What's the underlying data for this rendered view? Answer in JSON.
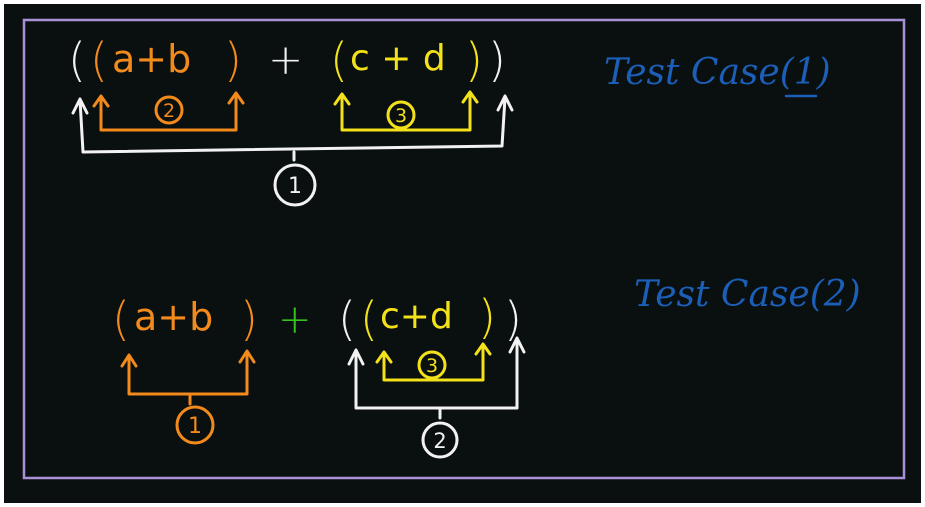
{
  "colors": {
    "background": "#0a0f0f",
    "frame": "#a891d8",
    "white": "#f2f2f2",
    "orange": "#f28a1c",
    "yellow": "#f3e21a",
    "green": "#35c21f",
    "blue": "#1c5fb8"
  },
  "case1": {
    "label": "Test Case(1)",
    "open_outer": "(",
    "open_inner_left": "(",
    "left_expr": "a+b",
    "close_inner_left": ")",
    "operator": "+",
    "open_inner_right": "(",
    "right_expr": "c + d",
    "close_inner_right": ")",
    "close_outer": ")",
    "bracket_left_order": "2",
    "bracket_right_order": "3",
    "bracket_outer_order": "1"
  },
  "case2": {
    "label": "Test Case(2)",
    "open_left": "(",
    "left_expr": "a+b",
    "close_left": ")",
    "operator": "+",
    "open_outer": "(",
    "open_inner": "(",
    "right_expr": "c+d",
    "close_inner": ")",
    "close_outer": ")",
    "bracket_left_order": "1",
    "bracket_inner_order": "3",
    "bracket_outer_order": "2"
  }
}
